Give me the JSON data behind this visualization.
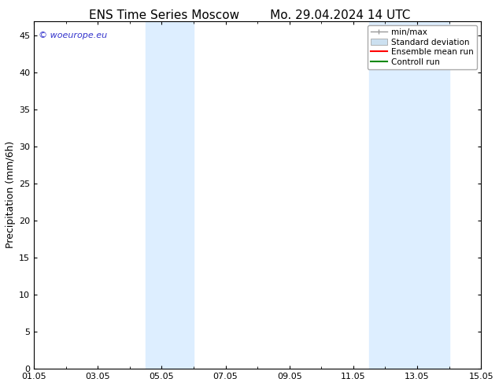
{
  "title_left": "ENS Time Series Moscow",
  "title_right": "Mo. 29.04.2024 14 UTC",
  "ylabel": "Precipitation (mm/6h)",
  "xtick_labels": [
    "01.05",
    "03.05",
    "05.05",
    "07.05",
    "09.05",
    "11.05",
    "13.05",
    "15.05"
  ],
  "xtick_positions": [
    0,
    2,
    4,
    6,
    8,
    10,
    12,
    14
  ],
  "xlim": [
    0,
    14
  ],
  "ylim": [
    0,
    47
  ],
  "yticks": [
    0,
    5,
    10,
    15,
    20,
    25,
    30,
    35,
    40,
    45
  ],
  "shaded_bands": [
    {
      "x_start": 3.5,
      "x_end": 5.0
    },
    {
      "x_start": 10.5,
      "x_end": 13.0
    }
  ],
  "shade_color": "#ddeeff",
  "bg_color": "#ffffff",
  "watermark_text": "© woeurope.eu",
  "watermark_color": "#3333cc",
  "legend_items": [
    {
      "label": "min/max",
      "color": "#999999",
      "lw": 1.5
    },
    {
      "label": "Standard deviation",
      "color": "#cce0f0",
      "lw": 8
    },
    {
      "label": "Ensemble mean run",
      "color": "#ff0000",
      "lw": 1.5
    },
    {
      "label": "Controll run",
      "color": "#008800",
      "lw": 1.5
    }
  ],
  "title_fontsize": 11,
  "tick_fontsize": 8,
  "ylabel_fontsize": 9,
  "legend_fontsize": 7.5
}
